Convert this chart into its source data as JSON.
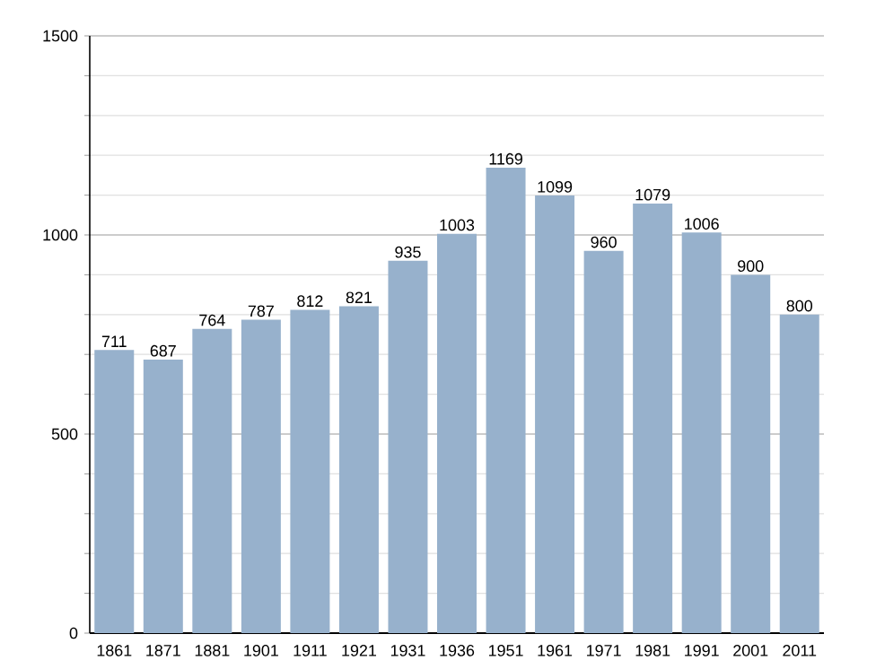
{
  "chart_data": {
    "type": "bar",
    "categories": [
      "1861",
      "1871",
      "1881",
      "1901",
      "1911",
      "1921",
      "1931",
      "1936",
      "1951",
      "1961",
      "1971",
      "1981",
      "1991",
      "2001",
      "2011"
    ],
    "values": [
      711,
      687,
      764,
      787,
      812,
      821,
      935,
      1003,
      1169,
      1099,
      960,
      1079,
      1006,
      900,
      800
    ],
    "color": "#97b1cc",
    "ylim": [
      0,
      1500
    ],
    "yticks": [
      0,
      {
        "value": 100,
        "label": null
      },
      {
        "value": 200,
        "label": null
      },
      {
        "value": 300,
        "label": null
      },
      {
        "value": 400,
        "label": null
      },
      500,
      {
        "value": 600,
        "label": null
      },
      {
        "value": 700,
        "label": null
      },
      {
        "value": 800,
        "label": null
      },
      {
        "value": 900,
        "label": null
      },
      1000,
      {
        "value": 1100,
        "label": null
      },
      {
        "value": 1200,
        "label": null
      },
      {
        "value": 1300,
        "label": null
      },
      {
        "value": 1400,
        "label": null
      },
      1500
    ],
    "grid": "y",
    "data_labels": true
  }
}
